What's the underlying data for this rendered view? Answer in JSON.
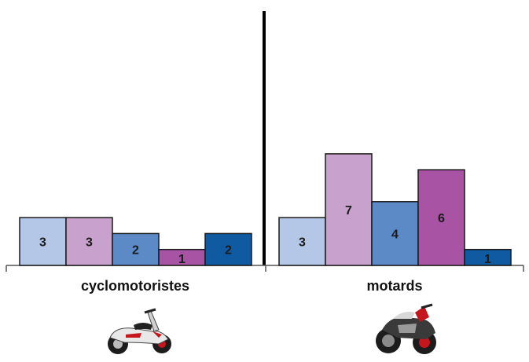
{
  "chart_data": {
    "type": "bar",
    "categories": [
      "cyclomotoristes",
      "motards"
    ],
    "series": [
      {
        "color": "#b4c7e7",
        "values": [
          3,
          3
        ]
      },
      {
        "color": "#c8a2cc",
        "values": [
          3,
          7
        ]
      },
      {
        "color": "#5b8ac7",
        "values": [
          2,
          4
        ]
      },
      {
        "color": "#a853a4",
        "values": [
          1,
          6
        ]
      },
      {
        "color": "#0f5aa0",
        "values": [
          2,
          1
        ]
      }
    ],
    "grid": false,
    "legend": "none",
    "ylim": [
      0,
      7
    ]
  },
  "icons": {
    "cyclomotoristes": "scooter-icon",
    "motards": "motorcycle-icon"
  }
}
